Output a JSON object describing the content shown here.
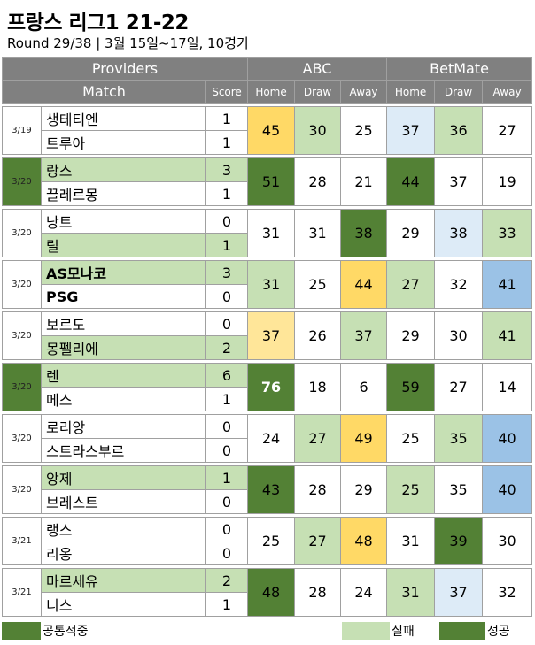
{
  "title": "프랑스 리그1 21-22",
  "subtitle": "Round 29/38  | 3월 15일~17일, 10경기",
  "header": {
    "providers": "Providers",
    "abc": "ABC",
    "betmate": "BetMate",
    "match": "Match",
    "score": "Score",
    "home": "Home",
    "draw": "Draw",
    "away": "Away"
  },
  "colors": {
    "dg": "#538135",
    "lg": "#c6e0b4",
    "y": "#ffd966",
    "ly": "#ffe699",
    "lb": "#ddebf7",
    "b": "#9bc2e6"
  },
  "matches": [
    {
      "date": "3/19",
      "date_color": "",
      "home": "생테티엔",
      "away": "트루아",
      "hs": "1",
      "as": "1",
      "hl": "",
      "al": "",
      "hb": false,
      "ab": false,
      "vals": [
        "45",
        "30",
        "25",
        "37",
        "36",
        "27"
      ],
      "cls": [
        "y",
        "lg",
        "",
        "lb",
        "lg",
        ""
      ]
    },
    {
      "date": "3/20",
      "date_color": "dg",
      "home": "랑스",
      "away": "끌레르몽",
      "hs": "3",
      "as": "1",
      "hl": "lg",
      "al": "",
      "hb": false,
      "ab": false,
      "vals": [
        "51",
        "28",
        "21",
        "44",
        "37",
        "19"
      ],
      "cls": [
        "dg",
        "",
        "",
        "dg",
        "",
        ""
      ]
    },
    {
      "date": "3/20",
      "date_color": "",
      "home": "낭트",
      "away": "릴",
      "hs": "0",
      "as": "1",
      "hl": "",
      "al": "lg",
      "hb": false,
      "ab": false,
      "vals": [
        "31",
        "31",
        "38",
        "29",
        "38",
        "33"
      ],
      "cls": [
        "",
        "",
        "dg",
        "",
        "lb",
        "lg"
      ]
    },
    {
      "date": "3/20",
      "date_color": "",
      "home": "AS모나코",
      "away": "PSG",
      "hs": "3",
      "as": "0",
      "hl": "lg",
      "al": "",
      "hb": true,
      "ab": true,
      "vals": [
        "31",
        "25",
        "44",
        "27",
        "32",
        "41"
      ],
      "cls": [
        "lg",
        "",
        "y",
        "lg",
        "",
        "b"
      ]
    },
    {
      "date": "3/20",
      "date_color": "",
      "home": "보르도",
      "away": "몽펠리에",
      "hs": "0",
      "as": "2",
      "hl": "",
      "al": "lg",
      "hb": false,
      "ab": false,
      "vals": [
        "37",
        "26",
        "37",
        "29",
        "30",
        "41"
      ],
      "cls": [
        "ly",
        "",
        "lg",
        "",
        "",
        "lg"
      ]
    },
    {
      "date": "3/20",
      "date_color": "dg",
      "home": "렌",
      "away": "메스",
      "hs": "6",
      "as": "1",
      "hl": "lg",
      "al": "",
      "hb": false,
      "ab": false,
      "vals": [
        "76",
        "18",
        "6",
        "59",
        "27",
        "14"
      ],
      "cls": [
        "dg-w",
        "",
        "",
        "dg",
        "",
        ""
      ]
    },
    {
      "date": "3/20",
      "date_color": "",
      "home": "로리앙",
      "away": "스트라스부르",
      "hs": "0",
      "as": "0",
      "hl": "",
      "al": "",
      "hb": false,
      "ab": false,
      "vals": [
        "24",
        "27",
        "49",
        "25",
        "35",
        "40"
      ],
      "cls": [
        "",
        "lg",
        "y",
        "",
        "lg",
        "b"
      ]
    },
    {
      "date": "3/20",
      "date_color": "",
      "home": "앙제",
      "away": "브레스트",
      "hs": "1",
      "as": "0",
      "hl": "lg",
      "al": "",
      "hb": false,
      "ab": false,
      "vals": [
        "43",
        "28",
        "29",
        "25",
        "35",
        "40"
      ],
      "cls": [
        "dg",
        "",
        "",
        "lg",
        "",
        "b"
      ]
    },
    {
      "date": "3/21",
      "date_color": "",
      "home": "랭스",
      "away": "리옹",
      "hs": "0",
      "as": "0",
      "hl": "",
      "al": "",
      "hb": false,
      "ab": false,
      "vals": [
        "25",
        "27",
        "48",
        "31",
        "39",
        "30"
      ],
      "cls": [
        "",
        "lg",
        "y",
        "",
        "dg",
        ""
      ]
    },
    {
      "date": "3/21",
      "date_color": "",
      "home": "마르세유",
      "away": "니스",
      "hs": "2",
      "as": "1",
      "hl": "lg",
      "al": "",
      "hb": false,
      "ab": false,
      "vals": [
        "48",
        "28",
        "24",
        "31",
        "37",
        "32"
      ],
      "cls": [
        "dg",
        "",
        "",
        "lg",
        "lb",
        ""
      ]
    }
  ],
  "legend": {
    "common": "공통적중",
    "fail": "실패",
    "success": "성공"
  }
}
